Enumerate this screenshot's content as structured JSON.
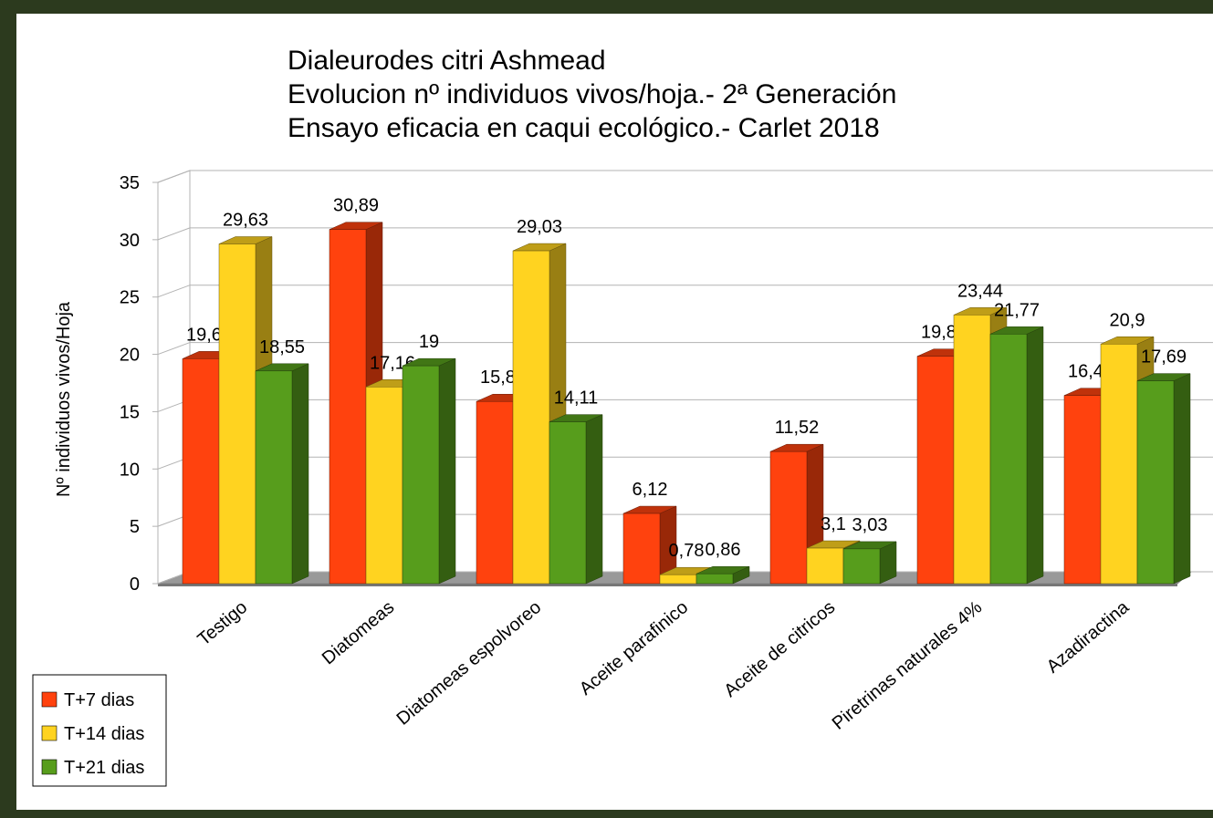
{
  "chart_data": {
    "type": "bar3d",
    "title": [
      "Dialeurodes citri Ashmead",
      "Evolucion nº individuos vivos/hoja.- 2ª Generación",
      "Ensayo eficacia en caqui ecológico.- Carlet 2018"
    ],
    "y_label": "Nº individuos vivos/Hoja",
    "categories": [
      "Testigo",
      "Diatomeas",
      "Diatomeas espolvoreo",
      "Aceite parafinico",
      "Aceite de citricos",
      "Piretrinas naturales 4%",
      "Azadiractina"
    ],
    "series": [
      {
        "name": "T+7 dias",
        "color": "#ff420e",
        "values": [
          19.62,
          30.89,
          15.89,
          6.12,
          11.52,
          19.83,
          16.41
        ],
        "value_labels": [
          "19,62",
          "30,89",
          "15,89",
          "6,12",
          "11,52",
          "19,83",
          "16,41"
        ]
      },
      {
        "name": "T+14 dias",
        "color": "#ffd320",
        "values": [
          29.63,
          17.16,
          29.03,
          0.78,
          3.1,
          23.44,
          20.9
        ],
        "value_labels": [
          "29,63",
          "17,16",
          "29,03",
          "0,78",
          "3,1",
          "23,44",
          "20,9"
        ]
      },
      {
        "name": "T+21 dias",
        "color": "#579d1c",
        "values": [
          18.55,
          19,
          14.11,
          0.86,
          3.03,
          21.77,
          17.69
        ],
        "value_labels": [
          "18,55",
          "19",
          "14,11",
          "0,86",
          "3,03",
          "21,77",
          "17,69"
        ]
      }
    ],
    "ylim": [
      0,
      35
    ],
    "yticks": [
      0,
      5,
      10,
      15,
      20,
      25,
      30,
      35
    ],
    "grid": true,
    "legend": "bottom-left"
  }
}
